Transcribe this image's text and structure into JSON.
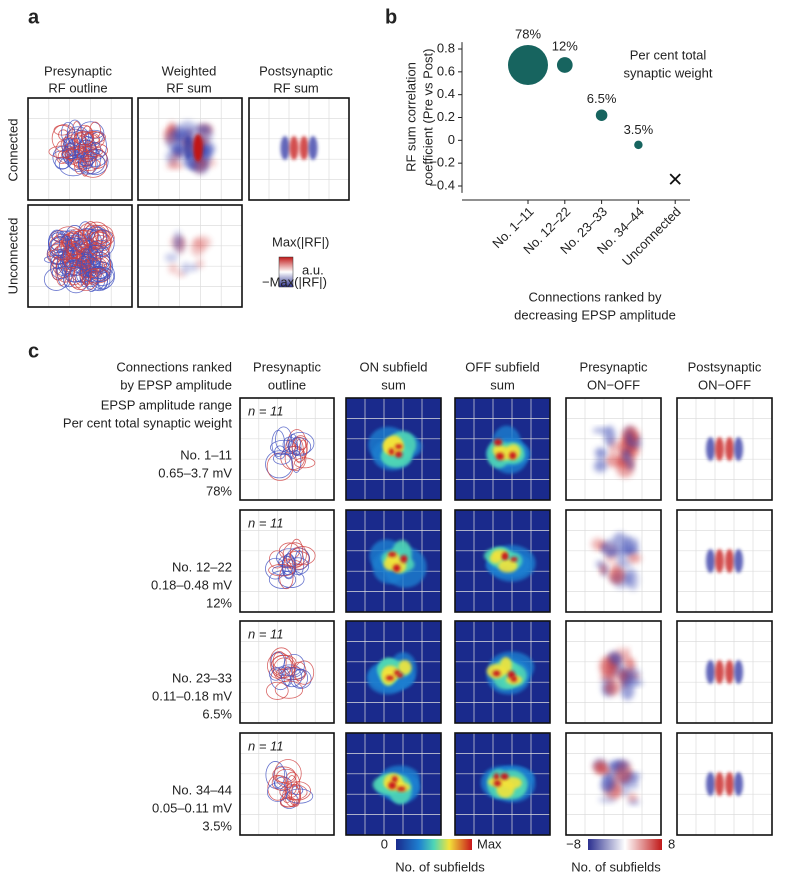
{
  "panel_a": {
    "letter": "a",
    "columns": [
      [
        "Presynaptic",
        "RF outline"
      ],
      [
        "Weighted",
        "RF sum"
      ],
      [
        "Postsynaptic",
        "RF sum"
      ]
    ],
    "rows": [
      "Connected",
      "Unconnected"
    ],
    "colorbar": {
      "max": "Max(|RF|)",
      "unit": "a.u.",
      "min": "−Max(|RF|)"
    }
  },
  "chart_data": {
    "type": "scatter",
    "letter": "b",
    "categories": [
      "No. 1–11",
      "No. 12–22",
      "No. 23–33",
      "No. 34–44",
      "Unconnected"
    ],
    "values": [
      0.66,
      0.66,
      0.22,
      -0.04,
      -0.34
    ],
    "sizes": [
      78,
      12,
      6.5,
      3.5,
      null
    ],
    "size_labels": [
      "78%",
      "12%",
      "6.5%",
      "3.5%",
      null
    ],
    "markers": [
      "circle",
      "circle",
      "circle",
      "circle",
      "x"
    ],
    "color": "#17645f",
    "ylim": [
      -0.46,
      0.86
    ],
    "yticks": [
      -0.4,
      -0.2,
      0,
      0.2,
      0.4,
      0.6,
      0.8
    ],
    "yticklabels": [
      "−0.4",
      "−0.2",
      "0",
      "0.2",
      "0.4",
      "0.6",
      "0.8"
    ],
    "ylabel": [
      "RF sum correlation",
      "coefficient (Pre vs Post)"
    ],
    "xlabel": [
      "Connections ranked by",
      "decreasing EPSP amplitude"
    ],
    "annotation": [
      "Per cent total",
      "synaptic weight"
    ]
  },
  "panel_c": {
    "letter": "c",
    "header": [
      "Connections ranked",
      "by EPSP amplitude"
    ],
    "legend": [
      "EPSP amplitude range",
      "Per cent total synaptic weight"
    ],
    "columns": [
      [
        "Presynaptic",
        "outline"
      ],
      [
        "ON subfield",
        "sum"
      ],
      [
        "OFF subfield",
        "sum"
      ],
      [
        "Presynaptic",
        "ON−OFF"
      ],
      [
        "Postsynaptic",
        "ON−OFF"
      ]
    ],
    "rows": [
      {
        "label": "No. 1–11",
        "range": "0.65–3.7 mV",
        "weight": "78%",
        "n": "n = 11"
      },
      {
        "label": "No. 12–22",
        "range": "0.18–0.48 mV",
        "weight": "12%",
        "n": "n = 11"
      },
      {
        "label": "No. 23–33",
        "range": "0.11–0.18 mV",
        "weight": "6.5%",
        "n": "n = 11"
      },
      {
        "label": "No. 34–44",
        "range": "0.05–0.11 mV",
        "weight": "3.5%",
        "n": "n = 11"
      }
    ],
    "colorbar1": {
      "min": "0",
      "max": "Max",
      "label": "No. of subfields"
    },
    "colorbar2": {
      "min": "−8",
      "max": "8",
      "label": "No. of subfields"
    }
  }
}
